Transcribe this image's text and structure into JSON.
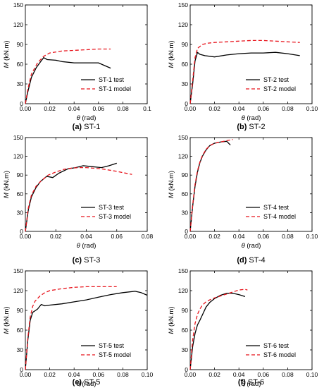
{
  "chart_data": [
    {
      "type": "line",
      "caption_id": "(a)",
      "caption_name": "ST-1",
      "xlabel_sym": "θ",
      "xlabel_unit": " (rad)",
      "ylabel_sym": "M",
      "ylabel_unit": " (kN.m)",
      "xlim": [
        0,
        0.1
      ],
      "ylim": [
        0,
        150
      ],
      "xticks": [
        0,
        0.02,
        0.04,
        0.06,
        0.08,
        0.1
      ],
      "xtick_labels": [
        "0.00",
        "0.02",
        "0.04",
        "0.06",
        "0.08",
        "0.1"
      ],
      "yticks": [
        0,
        30,
        60,
        90,
        120,
        150
      ],
      "ytick_labels": [
        "0",
        "30",
        "60",
        "90",
        "120",
        "150"
      ],
      "legend_position": "lower-right",
      "series": [
        {
          "name": "ST-1 test",
          "color": "#000000",
          "style": "solid",
          "x": [
            0,
            0.002,
            0.005,
            0.009,
            0.013,
            0.015,
            0.018,
            0.025,
            0.03,
            0.04,
            0.05,
            0.06,
            0.065,
            0.07
          ],
          "y": [
            0,
            18,
            40,
            55,
            65,
            70,
            67,
            66,
            64,
            62,
            62,
            62,
            58,
            54
          ]
        },
        {
          "name": "ST-1 model",
          "color": "#e8141c",
          "style": "dashed",
          "x": [
            0,
            0.002,
            0.005,
            0.01,
            0.015,
            0.02,
            0.03,
            0.04,
            0.05,
            0.06,
            0.07
          ],
          "y": [
            0,
            22,
            45,
            62,
            72,
            77,
            80,
            81,
            82,
            83,
            83
          ]
        }
      ]
    },
    {
      "type": "line",
      "caption_id": "(b)",
      "caption_name": "ST-2",
      "xlabel_sym": "θ",
      "xlabel_unit": " (rad)",
      "ylabel_sym": "M",
      "ylabel_unit": " (kN.m)",
      "xlim": [
        0,
        0.1
      ],
      "ylim": [
        0,
        150
      ],
      "xticks": [
        0,
        0.02,
        0.04,
        0.06,
        0.08,
        0.1
      ],
      "xtick_labels": [
        "0.00",
        "0.02",
        "0.04",
        "0.06",
        "0.08",
        "0.10"
      ],
      "yticks": [
        0,
        30,
        60,
        90,
        120,
        150
      ],
      "ytick_labels": [
        "0",
        "30",
        "60",
        "90",
        "120",
        "150"
      ],
      "legend_position": "lower-right",
      "series": [
        {
          "name": "ST-2 test",
          "color": "#000000",
          "style": "solid",
          "x": [
            0,
            0.002,
            0.004,
            0.006,
            0.008,
            0.012,
            0.02,
            0.03,
            0.04,
            0.05,
            0.06,
            0.07,
            0.08,
            0.09
          ],
          "y": [
            0,
            30,
            65,
            78,
            75,
            73,
            71,
            74,
            76,
            77,
            77,
            78,
            76,
            73
          ]
        },
        {
          "name": "ST-2 model",
          "color": "#e8141c",
          "style": "dashed",
          "x": [
            0,
            0.002,
            0.004,
            0.006,
            0.01,
            0.015,
            0.02,
            0.03,
            0.04,
            0.05,
            0.06,
            0.07,
            0.08,
            0.09
          ],
          "y": [
            0,
            35,
            70,
            84,
            90,
            92,
            93,
            94,
            95,
            96,
            96,
            95,
            94,
            93
          ]
        }
      ]
    },
    {
      "type": "line",
      "caption_id": "(c)",
      "caption_name": "ST-3",
      "xlabel_sym": "θ",
      "xlabel_unit": " (rad)",
      "ylabel_sym": "M",
      "ylabel_unit": " (kN.m)",
      "xlim": [
        0,
        0.08
      ],
      "ylim": [
        0,
        150
      ],
      "xticks": [
        0,
        0.02,
        0.04,
        0.06,
        0.08
      ],
      "xtick_labels": [
        "0.00",
        "0.02",
        "0.04",
        "0.06",
        "0.08"
      ],
      "yticks": [
        0,
        30,
        60,
        90,
        120,
        150
      ],
      "ytick_labels": [
        "0",
        "30",
        "60",
        "90",
        "120",
        "150"
      ],
      "legend_position": "lower-right",
      "series": [
        {
          "name": "ST-3 test",
          "color": "#000000",
          "style": "solid",
          "x": [
            0,
            0.002,
            0.004,
            0.007,
            0.01,
            0.014,
            0.018,
            0.022,
            0.028,
            0.033,
            0.038,
            0.042,
            0.05,
            0.055,
            0.06
          ],
          "y": [
            0,
            35,
            55,
            70,
            80,
            88,
            86,
            93,
            100,
            102,
            105,
            104,
            102,
            105,
            109
          ]
        },
        {
          "name": "ST-3 model",
          "color": "#e8141c",
          "style": "dashed",
          "x": [
            0,
            0.002,
            0.004,
            0.007,
            0.01,
            0.015,
            0.02,
            0.025,
            0.03,
            0.035,
            0.04,
            0.05,
            0.06,
            0.07
          ],
          "y": [
            0,
            38,
            58,
            72,
            80,
            90,
            95,
            99,
            101,
            102,
            102,
            100,
            96,
            91
          ]
        }
      ]
    },
    {
      "type": "line",
      "caption_id": "(d)",
      "caption_name": "ST-4",
      "xlabel_sym": "θ",
      "xlabel_unit": " (rad)",
      "ylabel_sym": "M",
      "ylabel_unit": " (kN.m)",
      "xlim": [
        0,
        0.1
      ],
      "ylim": [
        0,
        150
      ],
      "xticks": [
        0,
        0.02,
        0.04,
        0.06,
        0.08,
        0.1
      ],
      "xtick_labels": [
        "0.00",
        "0.02",
        "0.04",
        "0.06",
        "0.08",
        "0.10"
      ],
      "yticks": [
        0,
        30,
        60,
        90,
        120,
        150
      ],
      "ytick_labels": [
        "0",
        "30",
        "60",
        "90",
        "120",
        "150"
      ],
      "legend_position": "lower-right",
      "series": [
        {
          "name": "ST-4 test",
          "color": "#000000",
          "style": "solid",
          "x": [
            0,
            0.002,
            0.004,
            0.006,
            0.008,
            0.01,
            0.013,
            0.016,
            0.02,
            0.025,
            0.03,
            0.033
          ],
          "y": [
            0,
            40,
            72,
            95,
            110,
            120,
            130,
            137,
            141,
            143,
            144,
            138
          ]
        },
        {
          "name": "ST-4 model",
          "color": "#e8141c",
          "style": "dashed",
          "x": [
            0,
            0.002,
            0.004,
            0.006,
            0.008,
            0.01,
            0.013,
            0.016,
            0.02,
            0.025,
            0.03,
            0.035
          ],
          "y": [
            0,
            42,
            75,
            97,
            111,
            121,
            131,
            137,
            141,
            143,
            145,
            147
          ]
        }
      ]
    },
    {
      "type": "line",
      "caption_id": "(e)",
      "caption_name": "ST-5",
      "xlabel_sym": "θ",
      "xlabel_unit": " (rad)",
      "ylabel_sym": "M",
      "ylabel_unit": " (kN.m)",
      "xlim": [
        0,
        0.1
      ],
      "ylim": [
        0,
        150
      ],
      "xticks": [
        0,
        0.02,
        0.04,
        0.06,
        0.08,
        0.1
      ],
      "xtick_labels": [
        "0.00",
        "0.02",
        "0.04",
        "0.06",
        "0.08",
        "0.10"
      ],
      "yticks": [
        0,
        30,
        60,
        90,
        120,
        150
      ],
      "ytick_labels": [
        "0",
        "30",
        "60",
        "90",
        "120",
        "150"
      ],
      "legend_position": "lower-right",
      "series": [
        {
          "name": "ST-5 test",
          "color": "#000000",
          "style": "solid",
          "x": [
            0,
            0.002,
            0.004,
            0.006,
            0.01,
            0.013,
            0.016,
            0.02,
            0.03,
            0.04,
            0.05,
            0.06,
            0.07,
            0.08,
            0.09,
            0.095,
            0.1
          ],
          "y": [
            0,
            45,
            75,
            87,
            92,
            99,
            97,
            98,
            100,
            103,
            106,
            110,
            114,
            117,
            119,
            117,
            113
          ]
        },
        {
          "name": "ST-5 model",
          "color": "#e8141c",
          "style": "dashed",
          "x": [
            0,
            0.002,
            0.004,
            0.006,
            0.008,
            0.012,
            0.016,
            0.02,
            0.03,
            0.04,
            0.05,
            0.06,
            0.07,
            0.075
          ],
          "y": [
            0,
            48,
            80,
            96,
            104,
            112,
            117,
            120,
            123,
            125,
            126,
            126,
            126,
            126
          ]
        }
      ]
    },
    {
      "type": "line",
      "caption_id": "(f)",
      "caption_name": "ST-6",
      "xlabel_sym": "θ",
      "xlabel_unit": " (rad)",
      "ylabel_sym": "M",
      "ylabel_unit": " (kN.m)",
      "xlim": [
        0,
        0.1
      ],
      "ylim": [
        0,
        150
      ],
      "xticks": [
        0,
        0.02,
        0.04,
        0.06,
        0.08,
        0.1
      ],
      "xtick_labels": [
        "0.00",
        "0.02",
        "0.04",
        "0.06",
        "0.08",
        "0.10"
      ],
      "yticks": [
        0,
        30,
        60,
        90,
        120,
        150
      ],
      "ytick_labels": [
        "0",
        "30",
        "60",
        "90",
        "120",
        "150"
      ],
      "legend_position": "lower-right",
      "series": [
        {
          "name": "ST-6 test",
          "color": "#000000",
          "style": "solid",
          "x": [
            0,
            0.002,
            0.004,
            0.006,
            0.008,
            0.01,
            0.013,
            0.016,
            0.02,
            0.025,
            0.03,
            0.035,
            0.04,
            0.045
          ],
          "y": [
            0,
            35,
            55,
            68,
            75,
            83,
            95,
            102,
            108,
            113,
            116,
            116,
            114,
            111
          ]
        },
        {
          "name": "ST-6 model",
          "color": "#e8141c",
          "style": "dashed",
          "x": [
            0,
            0.002,
            0.004,
            0.006,
            0.008,
            0.01,
            0.013,
            0.016,
            0.02,
            0.025,
            0.03,
            0.035,
            0.04,
            0.045,
            0.047
          ],
          "y": [
            0,
            45,
            70,
            84,
            92,
            98,
            103,
            106,
            109,
            112,
            115,
            118,
            121,
            122,
            121
          ]
        }
      ]
    }
  ]
}
